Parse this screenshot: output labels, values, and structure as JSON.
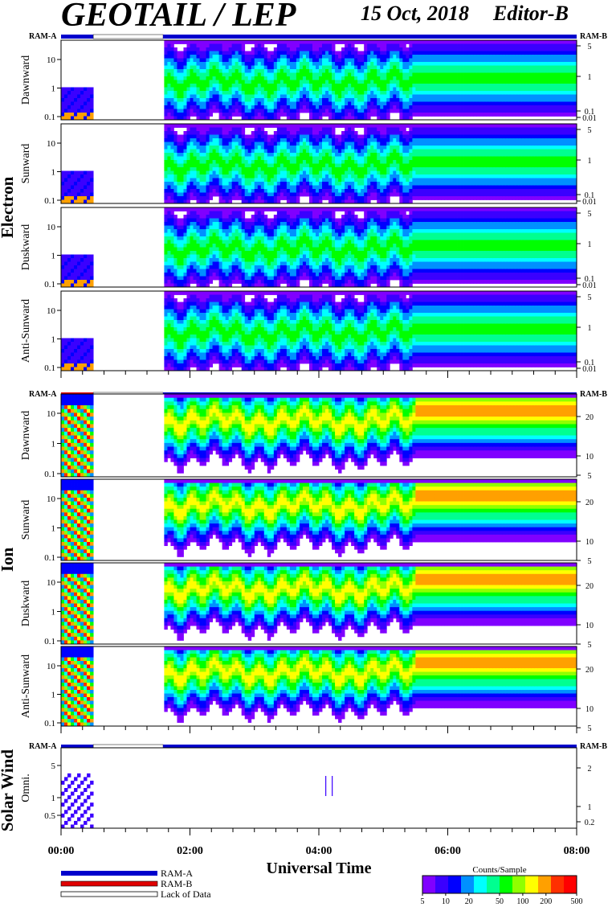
{
  "title": {
    "instrument": "GEOTAIL / LEP",
    "date": "15 Oct, 2018",
    "editor": "Editor-B"
  },
  "chart_data": {
    "type": "heatmap",
    "xlabel": "Universal Time",
    "x_ticks": [
      "00:00",
      "02:00",
      "04:00",
      "06:00",
      "08:00"
    ],
    "x_range_minutes": [
      0,
      480
    ],
    "data_gap_minutes": [
      30,
      95
    ],
    "groups": [
      {
        "name": "Electron",
        "mode_bar": {
          "left_label": "RAM-A",
          "right_label": "RAM-B",
          "segments": [
            {
              "start": 0,
              "end": 30,
              "mode": "RAM-A"
            },
            {
              "start": 30,
              "end": 95,
              "mode": "Lack of Data"
            },
            {
              "start": 95,
              "end": 480,
              "mode": "RAM-A"
            }
          ]
        },
        "left_scale": "log",
        "left_ticks": [
          "0.1",
          "1",
          "10"
        ],
        "right_scale": "log",
        "right_ticks": [
          "5",
          "1",
          "0.1",
          "0.01"
        ],
        "panels": [
          "Dawnward",
          "Sunward",
          "Duskward",
          "Anti-Sunward"
        ]
      },
      {
        "name": "Ion",
        "mode_bar": {
          "left_label": "RAM-A",
          "right_label": "RAM-B",
          "segments": [
            {
              "start": 0,
              "end": 30,
              "mode": "RAM-B"
            },
            {
              "start": 30,
              "end": 95,
              "mode": "Lack of Data"
            },
            {
              "start": 95,
              "end": 480,
              "mode": "RAM-A"
            }
          ]
        },
        "left_scale": "log",
        "left_ticks": [
          "0.1",
          "1",
          "10"
        ],
        "right_scale": "linear",
        "right_ticks": [
          "20",
          "10",
          "5"
        ],
        "panels": [
          "Dawnward",
          "Sunward",
          "Duskward",
          "Anti-Sunward"
        ]
      },
      {
        "name": "Solar Wind",
        "mode_bar": {
          "left_label": "RAM-A",
          "right_label": "RAM-B",
          "segments": [
            {
              "start": 0,
              "end": 30,
              "mode": "RAM-A"
            },
            {
              "start": 30,
              "end": 95,
              "mode": "Lack of Data"
            },
            {
              "start": 95,
              "end": 480,
              "mode": "RAM-A"
            }
          ]
        },
        "left_scale": "log",
        "left_ticks": [
          "5",
          "1",
          "0.5"
        ],
        "right_scale": "log",
        "right_ticks": [
          "2",
          "1",
          "0.2"
        ],
        "panels": [
          "Omni."
        ]
      }
    ],
    "legend": {
      "items": [
        {
          "label": "RAM-A",
          "color": "#0000cc"
        },
        {
          "label": "RAM-B",
          "color": "#e00000"
        },
        {
          "label": "Lack of Data",
          "color": "#ffffff"
        }
      ]
    },
    "colorbar": {
      "title": "Counts/Sample",
      "scale": "log",
      "range": [
        5,
        500
      ],
      "ticks": [
        "5",
        "10",
        "20",
        "50",
        "100",
        "200",
        "500"
      ]
    }
  },
  "colors": {
    "ram_a": "#0000cc",
    "ram_b": "#e00000",
    "colormap": [
      "#8000ff",
      "#3a00ff",
      "#0000ff",
      "#0090ff",
      "#00ffff",
      "#00ff90",
      "#00ff00",
      "#90ff00",
      "#ffff00",
      "#ffa000",
      "#ff3000",
      "#ff0000"
    ]
  }
}
